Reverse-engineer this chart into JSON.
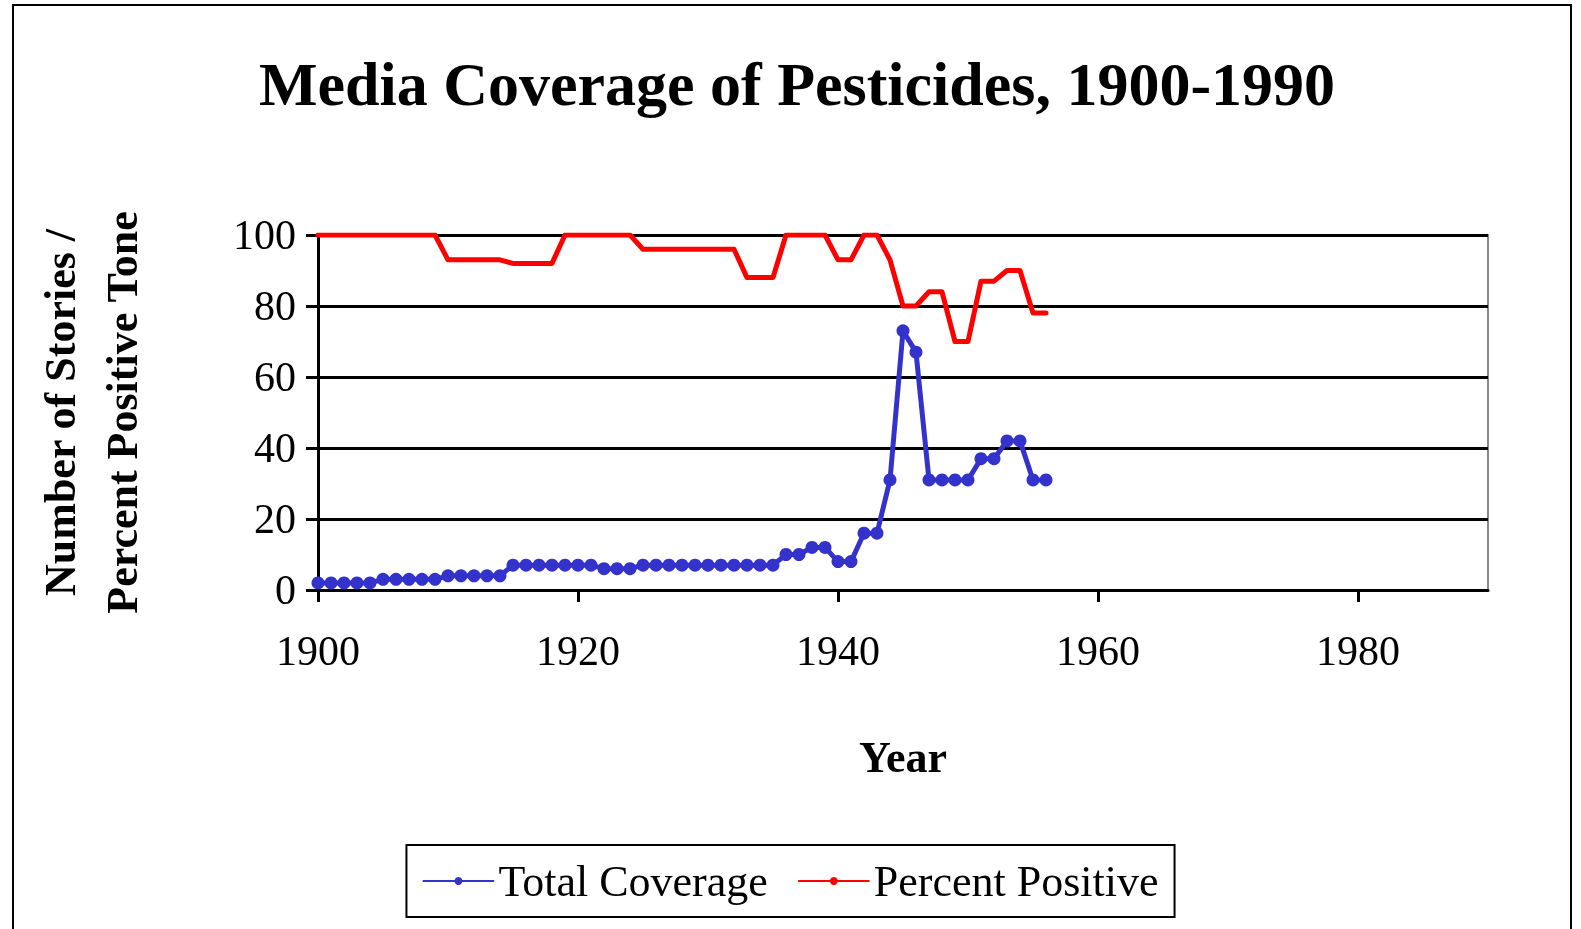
{
  "chart_data": {
    "type": "line",
    "title": "Media Coverage of Pesticides, 1900-1990",
    "xlabel": "Year",
    "ylabel": "Number of Stories /\nPercent Positive Tone",
    "x": [
      1900,
      1901,
      1902,
      1903,
      1904,
      1905,
      1906,
      1907,
      1908,
      1909,
      1910,
      1911,
      1912,
      1913,
      1914,
      1915,
      1916,
      1917,
      1918,
      1919,
      1920,
      1921,
      1922,
      1923,
      1924,
      1925,
      1926,
      1927,
      1928,
      1929,
      1930,
      1931,
      1932,
      1933,
      1934,
      1935,
      1936,
      1937,
      1938,
      1939,
      1940,
      1941,
      1942,
      1943,
      1944,
      1945,
      1946,
      1947,
      1948,
      1949,
      1950,
      1951,
      1952,
      1953,
      1954,
      1955,
      1956
    ],
    "series": [
      {
        "name": "Total Coverage",
        "color": "#3333cc",
        "marker": "circle",
        "values": [
          2,
          2,
          2,
          2,
          2,
          3,
          3,
          3,
          3,
          3,
          4,
          4,
          4,
          4,
          4,
          7,
          7,
          7,
          7,
          7,
          7,
          7,
          6,
          6,
          6,
          7,
          7,
          7,
          7,
          7,
          7,
          7,
          7,
          7,
          7,
          7,
          10,
          10,
          12,
          12,
          8,
          8,
          16,
          16,
          31,
          73,
          67,
          31,
          31,
          31,
          31,
          37,
          37,
          42,
          42,
          31,
          31
        ]
      },
      {
        "name": "Percent Positive",
        "color": "#ff0000",
        "marker": "none",
        "values": [
          100,
          100,
          100,
          100,
          100,
          100,
          100,
          100,
          100,
          100,
          93,
          93,
          93,
          93,
          93,
          92,
          92,
          92,
          92,
          100,
          100,
          100,
          100,
          100,
          100,
          96,
          96,
          96,
          96,
          96,
          96,
          96,
          96,
          88,
          88,
          88,
          100,
          100,
          100,
          100,
          93,
          93,
          100,
          100,
          93,
          80,
          80,
          84,
          84,
          70,
          70,
          87,
          87,
          90,
          90,
          78,
          78
        ]
      }
    ],
    "xlim": [
      1900,
      1990
    ],
    "xticks": [
      1900,
      1920,
      1940,
      1960,
      1980
    ],
    "ylim": [
      0,
      100
    ],
    "yticks": [
      0,
      20,
      40,
      60,
      80,
      100
    ],
    "grid": "y",
    "legend": "bottom",
    "line_style": "solid"
  }
}
